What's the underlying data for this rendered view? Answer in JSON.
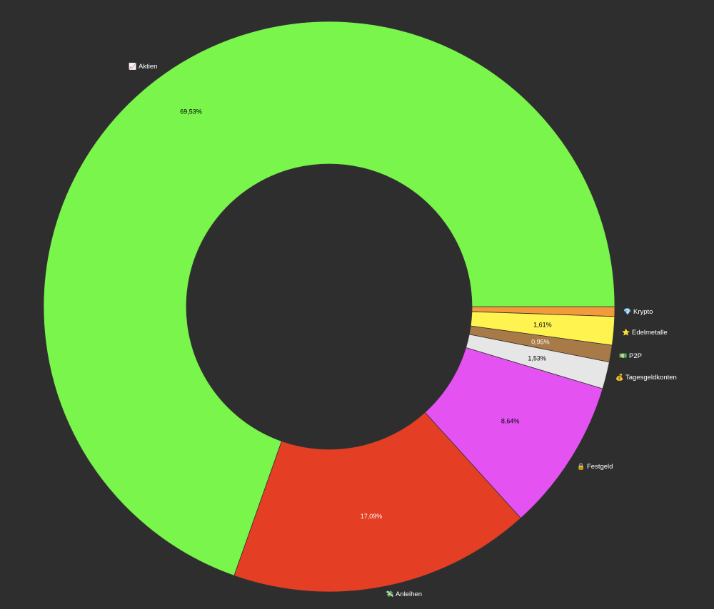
{
  "chart_data": {
    "type": "pie",
    "donut": true,
    "categories": [
      "Krypto",
      "Edelmetalle",
      "P2P",
      "Tagesgeldkonten",
      "Festgeld",
      "Anleihen",
      "Aktien"
    ],
    "values": [
      0.55,
      1.61,
      0.95,
      1.53,
      8.64,
      17.09,
      69.53
    ],
    "value_labels": [
      "",
      "1,61%",
      "0,95%",
      "1,53%",
      "8,64%",
      "17,09%",
      "69,53%"
    ],
    "colors": [
      "#f39a3b",
      "#fff34f",
      "#a87a48",
      "#e6e6e6",
      "#e453f2",
      "#e43e24",
      "#79f54c"
    ],
    "label_text_colors": [
      "#000000",
      "#000000",
      "#ffffff",
      "#000000",
      "#000000",
      "#ffffff",
      "#000000"
    ],
    "icons": [
      "💎",
      "⭐",
      "💵",
      "💰",
      "🔒",
      "💸",
      "📈"
    ],
    "icon_names": [
      "gem-icon",
      "star-icon",
      "banknote-icon",
      "money-bag-icon",
      "lock-icon",
      "money-wings-icon",
      "chart-up-icon"
    ],
    "background": "#2e2e2e"
  }
}
